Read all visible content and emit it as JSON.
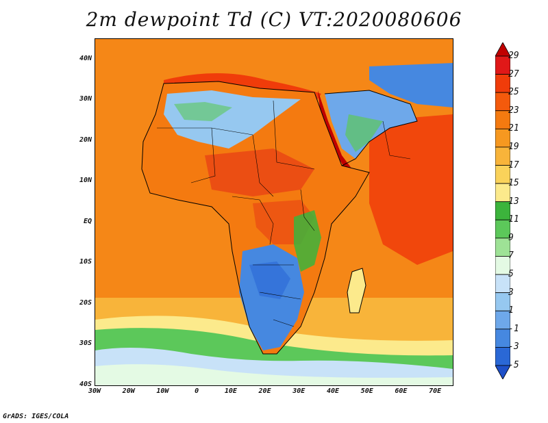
{
  "title": "2m dewpoint Td (C) VT:2020080606",
  "credit": "GrADS: IGES/COLA",
  "map": {
    "lat_ticks": [
      "40N",
      "30N",
      "20N",
      "10N",
      "EQ",
      "10S",
      "20S",
      "30S",
      "40S"
    ],
    "lat_values": [
      40,
      30,
      20,
      10,
      0,
      -10,
      -20,
      -30,
      -40
    ],
    "lon_ticks": [
      "30W",
      "20W",
      "10W",
      "0",
      "10E",
      "20E",
      "30E",
      "40E",
      "50E",
      "60E",
      "70E"
    ],
    "lon_values": [
      -30,
      -20,
      -10,
      0,
      10,
      20,
      30,
      40,
      50,
      60,
      70
    ],
    "lon_range": [
      -30,
      75
    ],
    "lat_range": [
      -40,
      45
    ]
  },
  "colorbar": {
    "labels": [
      "29",
      "27",
      "25",
      "23",
      "21",
      "19",
      "17",
      "15",
      "13",
      "11",
      "9",
      "7",
      "5",
      "3",
      "1",
      "-1",
      "-3",
      "-5"
    ],
    "colors": [
      "#c00000",
      "#e01818",
      "#f03c0a",
      "#f45a0c",
      "#f47a10",
      "#f69820",
      "#f8b43a",
      "#fad25a",
      "#fcea8c",
      "#3cb43c",
      "#5cc85a",
      "#9ee296",
      "#e4fae4",
      "#c8e2f8",
      "#96c8f0",
      "#6ea8ea",
      "#4688e0",
      "#2a68d6",
      "#1e50c8"
    ]
  }
}
